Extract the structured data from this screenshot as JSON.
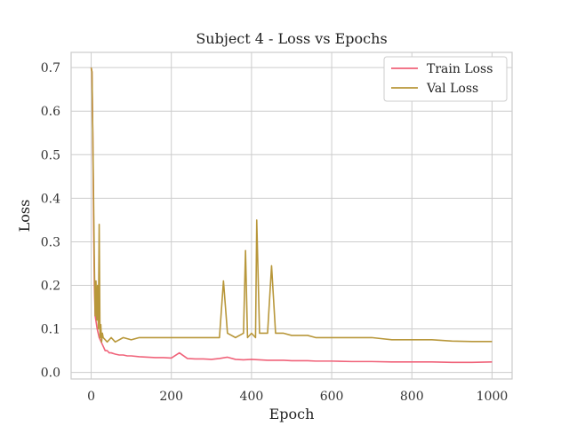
{
  "chart_data": {
    "type": "line",
    "title": "Subject 4 - Loss vs Epochs",
    "xlabel": "Epoch",
    "ylabel": "Loss",
    "xlim": [
      -50,
      1050
    ],
    "ylim": [
      -0.015,
      0.735
    ],
    "xticks": [
      0,
      200,
      400,
      600,
      800,
      1000
    ],
    "yticks": [
      0.0,
      0.1,
      0.2,
      0.3,
      0.4,
      0.5,
      0.6,
      0.7
    ],
    "grid": true,
    "legend_position": "top-right",
    "series": [
      {
        "name": "Train Loss",
        "color": "#f0637a",
        "x": [
          0,
          2,
          4,
          6,
          8,
          10,
          15,
          20,
          25,
          30,
          35,
          40,
          45,
          50,
          60,
          70,
          80,
          90,
          100,
          120,
          140,
          160,
          180,
          200,
          220,
          240,
          260,
          280,
          300,
          320,
          340,
          360,
          380,
          400,
          420,
          440,
          460,
          480,
          500,
          520,
          540,
          560,
          580,
          600,
          650,
          700,
          750,
          800,
          850,
          900,
          950,
          1000
        ],
        "values": [
          0.7,
          0.69,
          0.55,
          0.35,
          0.2,
          0.13,
          0.1,
          0.08,
          0.07,
          0.06,
          0.05,
          0.05,
          0.045,
          0.045,
          0.042,
          0.04,
          0.04,
          0.038,
          0.038,
          0.036,
          0.035,
          0.034,
          0.034,
          0.033,
          0.045,
          0.032,
          0.031,
          0.031,
          0.03,
          0.032,
          0.035,
          0.03,
          0.029,
          0.03,
          0.029,
          0.028,
          0.028,
          0.028,
          0.027,
          0.027,
          0.027,
          0.026,
          0.026,
          0.026,
          0.025,
          0.025,
          0.024,
          0.024,
          0.024,
          0.023,
          0.023,
          0.024
        ]
      },
      {
        "name": "Val Loss",
        "color": "#b8973a",
        "x": [
          0,
          2,
          4,
          6,
          8,
          10,
          12,
          14,
          16,
          18,
          20,
          22,
          24,
          26,
          28,
          30,
          40,
          50,
          60,
          80,
          100,
          120,
          140,
          160,
          180,
          200,
          220,
          240,
          260,
          280,
          300,
          320,
          330,
          340,
          360,
          380,
          385,
          390,
          400,
          410,
          413,
          420,
          440,
          450,
          460,
          480,
          500,
          520,
          540,
          560,
          600,
          650,
          700,
          750,
          800,
          850,
          900,
          950,
          1000
        ],
        "values": [
          0.7,
          0.69,
          0.55,
          0.4,
          0.25,
          0.13,
          0.21,
          0.12,
          0.2,
          0.1,
          0.34,
          0.08,
          0.11,
          0.07,
          0.09,
          0.08,
          0.07,
          0.08,
          0.07,
          0.08,
          0.075,
          0.08,
          0.08,
          0.08,
          0.08,
          0.08,
          0.08,
          0.08,
          0.08,
          0.08,
          0.08,
          0.08,
          0.21,
          0.09,
          0.08,
          0.09,
          0.28,
          0.08,
          0.09,
          0.08,
          0.35,
          0.09,
          0.09,
          0.245,
          0.09,
          0.09,
          0.085,
          0.085,
          0.085,
          0.08,
          0.08,
          0.08,
          0.08,
          0.075,
          0.075,
          0.075,
          0.072,
          0.071,
          0.071
        ]
      }
    ]
  }
}
